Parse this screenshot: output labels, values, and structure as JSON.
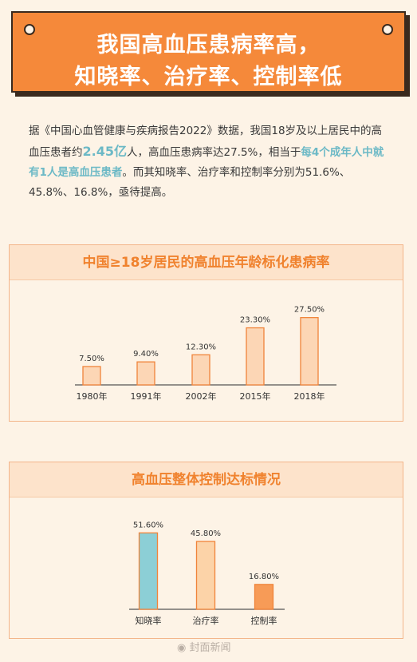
{
  "title": {
    "line1": "我国高血压患病率高，",
    "line2": "知晓率、治疗率、控制率低"
  },
  "intro": {
    "t1": "据《中国心血管健康与疾病报告2022》数据，我国18岁及以上居民中的高血压患者约",
    "t2": "2.45亿",
    "t3": "人，高血压患病率达27.5%，相当于",
    "t4": "每4个成年人中就有1人是高血压患者",
    "t5": "。而其知晓率、治疗率和控制率分别为51.6%、45.8%、16.8%，亟待提高。"
  },
  "colors": {
    "orange_main": "#f5893a",
    "bar_fill": "#fcd6b5",
    "bar_stroke": "#f0843a",
    "teal": "#8ccfd6",
    "awareness": "#8ccfd6",
    "treatment": "#fcd3a8",
    "control": "#f79b57"
  },
  "chart_data": [
    {
      "type": "bar",
      "title": "中国≥18岁居民的高血压年龄标化患病率",
      "categories": [
        "1980年",
        "1991年",
        "2002年",
        "2015年",
        "2018年"
      ],
      "values": [
        7.5,
        9.4,
        12.3,
        23.3,
        27.5
      ],
      "data_labels": [
        "7.50%",
        "9.40%",
        "12.30%",
        "23.30%",
        "27.50%"
      ],
      "ylim": [
        0,
        30
      ],
      "grid": false
    },
    {
      "type": "bar",
      "title": "高血压整体控制达标情况",
      "categories": [
        "知晓率",
        "治疗率",
        "控制率"
      ],
      "values": [
        51.6,
        45.8,
        16.8
      ],
      "data_labels": [
        "51.60%",
        "45.80%",
        "16.80%"
      ],
      "ylim": [
        0,
        55
      ],
      "grid": false
    }
  ],
  "watermark": "封面新闻"
}
